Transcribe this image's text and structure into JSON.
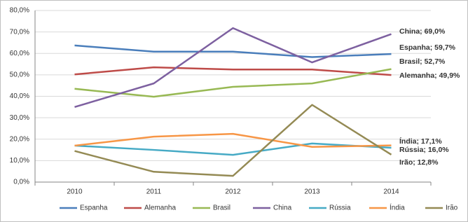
{
  "chart_data": {
    "type": "line",
    "categories": [
      "2010",
      "2011",
      "2012",
      "2013",
      "2014"
    ],
    "ylim": [
      0,
      80
    ],
    "yticks": [
      {
        "value": 0,
        "label": "0,0%"
      },
      {
        "value": 10,
        "label": "10,0%"
      },
      {
        "value": 20,
        "label": "20,0%"
      },
      {
        "value": 30,
        "label": "30,0%"
      },
      {
        "value": 40,
        "label": "40,0%"
      },
      {
        "value": 50,
        "label": "50,0%"
      },
      {
        "value": 60,
        "label": "60,0%"
      },
      {
        "value": 70,
        "label": "70,0%"
      },
      {
        "value": 80,
        "label": "80,0%"
      }
    ],
    "grid": true,
    "legend": "bottom",
    "series": [
      {
        "name": "Espanha",
        "color": "#4a7ebb",
        "values": [
          63.7,
          60.8,
          60.8,
          58.3,
          59.7
        ],
        "value_labels": [
          null,
          null,
          null,
          null,
          "Espanha; 59,7%"
        ]
      },
      {
        "name": "Alemanha",
        "color": "#be4b48",
        "values": [
          50.2,
          53.5,
          52.5,
          52.5,
          49.9
        ],
        "value_labels": [
          null,
          null,
          null,
          null,
          "Alemanha; 49,9%"
        ]
      },
      {
        "name": "Brasil",
        "color": "#98b954",
        "values": [
          43.5,
          39.8,
          44.4,
          46.0,
          52.7
        ],
        "value_labels": [
          null,
          null,
          null,
          null,
          "Brasil; 52,7%"
        ]
      },
      {
        "name": "China",
        "color": "#7d60a0",
        "values": [
          35.0,
          46.0,
          71.8,
          55.8,
          69.0
        ],
        "value_labels": [
          null,
          null,
          null,
          null,
          "China; 69,0%"
        ]
      },
      {
        "name": "Rússia",
        "color": "#46aac5",
        "values": [
          17.0,
          15.0,
          12.7,
          18.0,
          16.0
        ],
        "value_labels": [
          null,
          null,
          null,
          null,
          "Rússia; 16,0%"
        ]
      },
      {
        "name": "Índia",
        "color": "#f79646",
        "values": [
          17.0,
          21.2,
          22.5,
          16.4,
          17.1
        ],
        "value_labels": [
          null,
          null,
          null,
          null,
          "Índia; 17,1%"
        ]
      },
      {
        "name": "Irão",
        "color": "#948a54",
        "values": [
          14.5,
          4.8,
          2.9,
          36.0,
          12.8
        ],
        "value_labels": [
          null,
          null,
          null,
          null,
          "Irão; 12,8%"
        ]
      }
    ]
  }
}
